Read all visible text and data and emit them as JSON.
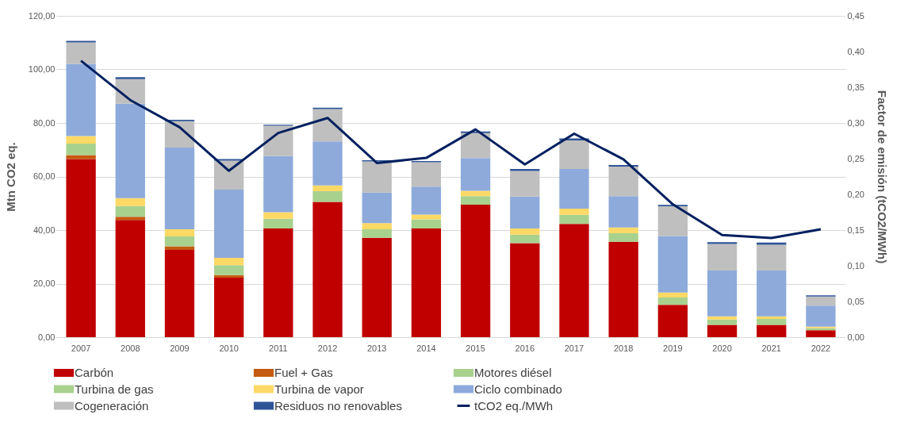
{
  "chart_data": {
    "type": "bar",
    "stacked": true,
    "categories": [
      "2007",
      "2008",
      "2009",
      "2010",
      "2011",
      "2012",
      "2013",
      "2014",
      "2015",
      "2016",
      "2017",
      "2018",
      "2019",
      "2020",
      "2021",
      "2022"
    ],
    "series": [
      {
        "name": "Carbón",
        "color": "#c00000",
        "values": [
          66.5,
          43.8,
          32.6,
          22.2,
          40.6,
          50.5,
          37.1,
          40.6,
          49.5,
          35.1,
          42.3,
          35.6,
          12.1,
          4.6,
          4.6,
          2.6
        ]
      },
      {
        "name": "Fuel + Gas",
        "color": "#c55a11",
        "values": [
          1.5,
          1.2,
          1.3,
          1.0,
          0,
          0,
          0,
          0,
          0,
          0,
          0,
          0,
          0,
          0,
          0,
          0
        ]
      },
      {
        "name": "Motores diésel",
        "color": "#a9d18e",
        "values": [
          4.3,
          4.0,
          3.7,
          3.7,
          3.6,
          4.0,
          3.2,
          3.4,
          3.2,
          3.2,
          3.4,
          3.2,
          2.7,
          2.0,
          2.2,
          0.8
        ]
      },
      {
        "name": "Turbina de gas",
        "color": "#a9d18e",
        "values": [
          0,
          0,
          0,
          0,
          0,
          0,
          0,
          0,
          0,
          0,
          0,
          0,
          0,
          0,
          0,
          0
        ]
      },
      {
        "name": "Turbina de vapor",
        "color": "#ffd966",
        "values": [
          2.8,
          2.9,
          2.7,
          2.7,
          2.5,
          2.2,
          2.3,
          1.8,
          2.0,
          2.3,
          2.3,
          2.2,
          1.9,
          1.2,
          1.0,
          0.5
        ]
      },
      {
        "name": "Ciclo combinado",
        "color": "#8eaadb",
        "values": [
          27.0,
          35.3,
          30.5,
          25.5,
          20.9,
          16.4,
          11.4,
          10.4,
          12.2,
          11.9,
          14.8,
          11.7,
          21.1,
          17.1,
          17.1,
          7.9
        ]
      },
      {
        "name": "Cogeneración",
        "color": "#bfbfbf",
        "values": [
          8.0,
          9.2,
          9.9,
          10.8,
          11.4,
          12.1,
          11.6,
          9.1,
          9.3,
          9.6,
          10.7,
          11.0,
          11.1,
          9.9,
          9.6,
          3.4
        ]
      },
      {
        "name": "Residuos no renovables",
        "color": "#2f5597",
        "values": [
          0.6,
          0.7,
          0.5,
          0.6,
          0.3,
          0.5,
          0.5,
          0.5,
          0.6,
          0.7,
          0.7,
          0.6,
          0.5,
          0.7,
          0.8,
          0.4
        ]
      },
      {
        "name": "tCO2 eq./MWh",
        "color": "#002060",
        "type": "line",
        "axis": "y2",
        "values": [
          0.387,
          0.332,
          0.294,
          0.233,
          0.286,
          0.307,
          0.244,
          0.251,
          0.291,
          0.242,
          0.285,
          0.249,
          0.186,
          0.143,
          0.139,
          0.151
        ]
      }
    ],
    "ylabel": "Mtn CO2 eq.",
    "y2label": "Factor de emisión (tCO2/MWh)",
    "ylim": [
      0,
      120
    ],
    "yticks": [
      {
        "value": 0,
        "label": "0,00"
      },
      {
        "value": 20,
        "label": "20,00"
      },
      {
        "value": 40,
        "label": "40,00"
      },
      {
        "value": 60,
        "label": "60,00"
      },
      {
        "value": 80,
        "label": "80,00"
      },
      {
        "value": 100,
        "label": "100,00"
      },
      {
        "value": 120,
        "label": "120,00"
      }
    ],
    "y2lim": [
      0,
      0.45
    ],
    "y2ticks": [
      {
        "value": 0,
        "label": "0,00"
      },
      {
        "value": 0.05,
        "label": "0,05"
      },
      {
        "value": 0.1,
        "label": "0,10"
      },
      {
        "value": 0.15,
        "label": "0,15"
      },
      {
        "value": 0.2,
        "label": "0,20"
      },
      {
        "value": 0.25,
        "label": "0,25"
      },
      {
        "value": 0.3,
        "label": "0,30"
      },
      {
        "value": 0.35,
        "label": "0,35"
      },
      {
        "value": 0.4,
        "label": "0,40"
      },
      {
        "value": 0.45,
        "label": "0,45"
      }
    ],
    "grid": "y",
    "legend": "bottom"
  }
}
